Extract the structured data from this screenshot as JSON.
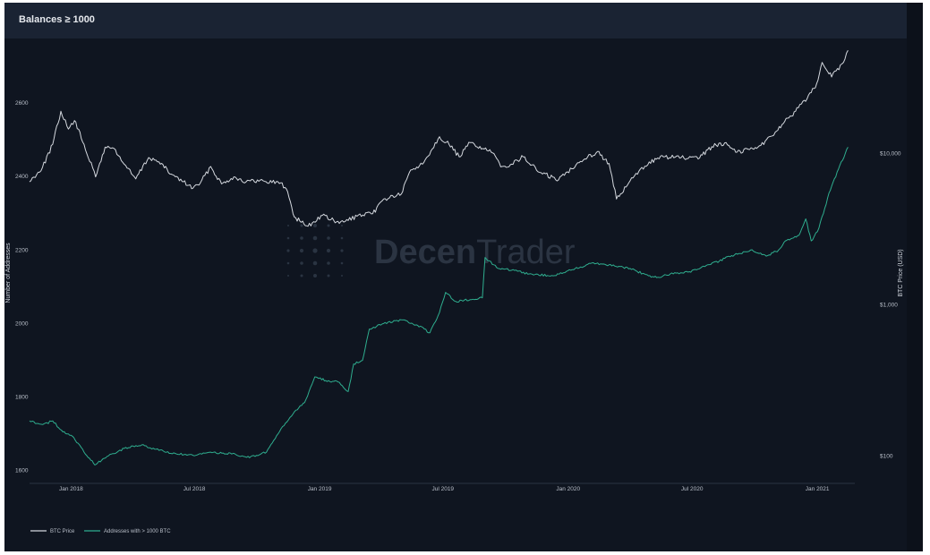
{
  "header": {
    "title": "Balances ≥ 1000"
  },
  "watermark": {
    "text_bold": "Decen",
    "text_light": "Trader"
  },
  "colors": {
    "background": "#0f1520",
    "header": "#1a2333",
    "btc_price": "#d4d8de",
    "addresses": "#2fae8f"
  },
  "chart_data": {
    "type": "line",
    "title": "Balances ≥ 1000",
    "x_ticks": [
      "Jan 2018",
      "Jul 2018",
      "Jan 2019",
      "Jul 2019",
      "Jan 2020",
      "Jul 2020",
      "Jan 2021"
    ],
    "y_left": {
      "label": "Number of Addresses",
      "ticks": [
        "1600",
        "1800",
        "2000",
        "2200",
        "2400",
        "2600"
      ],
      "range": [
        1565,
        2710
      ]
    },
    "y_right": {
      "label": "BTC Price (USD)",
      "scale": "log",
      "ticks": [
        "$100",
        "$1,000",
        "$10,000"
      ],
      "range": [
        1.82,
        4.6
      ]
    },
    "grid": false,
    "legend_position": "bottom-left",
    "series": [
      {
        "name": "BTC Price",
        "axis": "right",
        "color": "#d4d8de",
        "points": [
          [
            "2017-11-01",
            6500
          ],
          [
            "2017-11-20",
            8100
          ],
          [
            "2017-12-05",
            11500
          ],
          [
            "2017-12-17",
            19000
          ],
          [
            "2017-12-28",
            14500
          ],
          [
            "2018-01-06",
            16500
          ],
          [
            "2018-01-20",
            11500
          ],
          [
            "2018-02-06",
            7000
          ],
          [
            "2018-02-20",
            11000
          ],
          [
            "2018-03-05",
            10800
          ],
          [
            "2018-03-20",
            8500
          ],
          [
            "2018-04-06",
            6800
          ],
          [
            "2018-04-25",
            9400
          ],
          [
            "2018-05-10",
            8800
          ],
          [
            "2018-05-28",
            7300
          ],
          [
            "2018-06-15",
            6500
          ],
          [
            "2018-06-29",
            5900
          ],
          [
            "2018-07-10",
            6400
          ],
          [
            "2018-07-25",
            8200
          ],
          [
            "2018-08-10",
            6300
          ],
          [
            "2018-08-28",
            7000
          ],
          [
            "2018-09-15",
            6500
          ],
          [
            "2018-10-10",
            6600
          ],
          [
            "2018-11-05",
            6400
          ],
          [
            "2018-11-15",
            5600
          ],
          [
            "2018-11-25",
            3800
          ],
          [
            "2018-12-15",
            3300
          ],
          [
            "2019-01-05",
            3900
          ],
          [
            "2019-01-30",
            3450
          ],
          [
            "2019-02-25",
            3850
          ],
          [
            "2019-03-20",
            4000
          ],
          [
            "2019-04-05",
            5000
          ],
          [
            "2019-05-01",
            5400
          ],
          [
            "2019-05-15",
            7800
          ],
          [
            "2019-06-01",
            8500
          ],
          [
            "2019-06-26",
            12900
          ],
          [
            "2019-07-10",
            11500
          ],
          [
            "2019-07-25",
            9500
          ],
          [
            "2019-08-10",
            11800
          ],
          [
            "2019-09-10",
            10200
          ],
          [
            "2019-09-26",
            8200
          ],
          [
            "2019-10-10",
            8500
          ],
          [
            "2019-10-27",
            9500
          ],
          [
            "2019-11-20",
            7500
          ],
          [
            "2019-12-18",
            6700
          ],
          [
            "2020-01-15",
            8700
          ],
          [
            "2020-02-13",
            10300
          ],
          [
            "2020-03-01",
            8600
          ],
          [
            "2020-03-12",
            5000
          ],
          [
            "2020-03-16",
            5200
          ],
          [
            "2020-04-01",
            6600
          ],
          [
            "2020-04-29",
            8800
          ],
          [
            "2020-05-20",
            9500
          ],
          [
            "2020-06-15",
            9400
          ],
          [
            "2020-07-10",
            9200
          ],
          [
            "2020-07-30",
            11100
          ],
          [
            "2020-08-20",
            11800
          ],
          [
            "2020-09-05",
            10200
          ],
          [
            "2020-10-10",
            11300
          ],
          [
            "2020-10-25",
            13000
          ],
          [
            "2020-11-10",
            15500
          ],
          [
            "2020-11-30",
            19000
          ],
          [
            "2020-12-17",
            23000
          ],
          [
            "2020-12-31",
            29000
          ],
          [
            "2021-01-08",
            40000
          ],
          [
            "2021-01-22",
            32000
          ],
          [
            "2021-02-06",
            39000
          ],
          [
            "2021-02-15",
            48000
          ]
        ]
      },
      {
        "name": "Addresses with > 1000 BTC",
        "axis": "left",
        "color": "#2fae8f",
        "points": [
          [
            "2017-11-01",
            1735
          ],
          [
            "2017-11-20",
            1725
          ],
          [
            "2017-12-05",
            1735
          ],
          [
            "2017-12-20",
            1705
          ],
          [
            "2018-01-05",
            1690
          ],
          [
            "2018-01-20",
            1650
          ],
          [
            "2018-02-05",
            1615
          ],
          [
            "2018-02-25",
            1640
          ],
          [
            "2018-03-20",
            1660
          ],
          [
            "2018-04-15",
            1670
          ],
          [
            "2018-05-10",
            1655
          ],
          [
            "2018-06-05",
            1645
          ],
          [
            "2018-07-01",
            1640
          ],
          [
            "2018-07-25",
            1650
          ],
          [
            "2018-08-25",
            1645
          ],
          [
            "2018-09-20",
            1635
          ],
          [
            "2018-10-15",
            1650
          ],
          [
            "2018-11-01",
            1700
          ],
          [
            "2018-11-25",
            1760
          ],
          [
            "2018-12-10",
            1785
          ],
          [
            "2018-12-25",
            1855
          ],
          [
            "2019-01-10",
            1845
          ],
          [
            "2019-01-30",
            1840
          ],
          [
            "2019-02-12",
            1815
          ],
          [
            "2019-02-20",
            1890
          ],
          [
            "2019-03-05",
            1900
          ],
          [
            "2019-03-15",
            1985
          ],
          [
            "2019-04-05",
            2000
          ],
          [
            "2019-05-01",
            2010
          ],
          [
            "2019-05-25",
            1995
          ],
          [
            "2019-06-12",
            1975
          ],
          [
            "2019-06-26",
            2030
          ],
          [
            "2019-07-05",
            2085
          ],
          [
            "2019-07-20",
            2060
          ],
          [
            "2019-08-10",
            2065
          ],
          [
            "2019-08-28",
            2070
          ],
          [
            "2019-09-01",
            2180
          ],
          [
            "2019-09-20",
            2150
          ],
          [
            "2019-10-10",
            2145
          ],
          [
            "2019-11-05",
            2135
          ],
          [
            "2019-12-10",
            2130
          ],
          [
            "2020-01-05",
            2145
          ],
          [
            "2020-02-05",
            2165
          ],
          [
            "2020-03-01",
            2160
          ],
          [
            "2020-04-01",
            2150
          ],
          [
            "2020-04-28",
            2130
          ],
          [
            "2020-05-10",
            2125
          ],
          [
            "2020-05-30",
            2135
          ],
          [
            "2020-06-25",
            2140
          ],
          [
            "2020-07-20",
            2155
          ],
          [
            "2020-08-10",
            2170
          ],
          [
            "2020-08-28",
            2185
          ],
          [
            "2020-09-25",
            2200
          ],
          [
            "2020-10-20",
            2185
          ],
          [
            "2020-11-05",
            2200
          ],
          [
            "2020-11-15",
            2225
          ],
          [
            "2020-12-05",
            2240
          ],
          [
            "2020-12-15",
            2285
          ],
          [
            "2020-12-23",
            2225
          ],
          [
            "2021-01-01",
            2250
          ],
          [
            "2021-01-10",
            2300
          ],
          [
            "2021-01-18",
            2355
          ],
          [
            "2021-02-01",
            2420
          ],
          [
            "2021-02-15",
            2480
          ]
        ]
      }
    ]
  }
}
